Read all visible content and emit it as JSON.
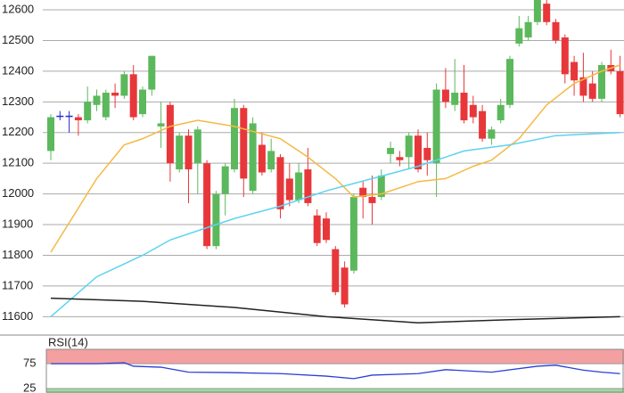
{
  "chart_data": [
    {
      "type": "candlestick",
      "ylim": [
        11540,
        12632
      ],
      "yticks": [
        11600,
        11700,
        11800,
        11900,
        12000,
        12100,
        12200,
        12300,
        12400,
        12500,
        12600
      ],
      "grid": true,
      "up_color": "#5cb85c",
      "down_color": "#e8373a",
      "doji_color": "#2a2ad0",
      "open": [
        12140,
        12255,
        12255,
        12250,
        12240,
        12290,
        12250,
        12330,
        12320,
        12390,
        12260,
        12340,
        12220,
        12290,
        12080,
        12190,
        12100,
        12100,
        11830,
        12000,
        12080,
        12280,
        12010,
        12160,
        12080,
        12120,
        12050,
        11980,
        12080,
        11930,
        11920,
        11820,
        11760,
        11750,
        12020,
        11990,
        11990,
        12130,
        12120,
        12120,
        12190,
        12150,
        12100,
        12340,
        12290,
        12330,
        12290,
        12270,
        12180,
        12240,
        12290,
        12490,
        12510,
        12560,
        12620,
        12560,
        12510,
        12430,
        12380,
        12360,
        12310,
        12420,
        12400
      ],
      "close": [
        12250,
        12255,
        12255,
        12240,
        12300,
        12320,
        12330,
        12320,
        12390,
        12250,
        12340,
        12450,
        12230,
        12100,
        12190,
        12080,
        12210,
        11830,
        12000,
        12090,
        12280,
        12050,
        12230,
        12070,
        12140,
        11950,
        11980,
        12070,
        11970,
        11840,
        11850,
        11680,
        11640,
        11990,
        11990,
        11970,
        12060,
        12150,
        12110,
        12190,
        12080,
        12110,
        12340,
        12300,
        12330,
        12240,
        12250,
        12180,
        12210,
        12290,
        12440,
        12540,
        12560,
        12640,
        12560,
        12500,
        12390,
        12370,
        12320,
        12310,
        12420,
        12400,
        12260
      ],
      "high": [
        12260,
        12270,
        12270,
        12260,
        12350,
        12340,
        12340,
        12360,
        12400,
        12420,
        12350,
        12450,
        12300,
        12300,
        12200,
        12210,
        12220,
        12110,
        12010,
        12100,
        12310,
        12290,
        12250,
        12200,
        12180,
        12130,
        12100,
        12100,
        12150,
        11950,
        11940,
        11830,
        11780,
        12000,
        12040,
        12060,
        12080,
        12170,
        12140,
        12200,
        12210,
        12200,
        12360,
        12410,
        12440,
        12420,
        12320,
        12290,
        12220,
        12310,
        12450,
        12580,
        12580,
        12650,
        12640,
        12570,
        12520,
        12450,
        12460,
        12400,
        12430,
        12470,
        12450
      ],
      "low": [
        12110,
        12240,
        12200,
        12190,
        12230,
        12270,
        12240,
        12280,
        12310,
        12240,
        12250,
        12320,
        12150,
        12040,
        12070,
        11970,
        12000,
        11820,
        11820,
        11930,
        12070,
        11990,
        12000,
        12060,
        12070,
        11920,
        11960,
        11970,
        11960,
        11830,
        11840,
        11670,
        11630,
        11740,
        11920,
        11900,
        11980,
        12100,
        12090,
        12080,
        12070,
        12060,
        11990,
        12280,
        12270,
        12230,
        12230,
        12170,
        12160,
        12230,
        12280,
        12480,
        12500,
        12550,
        12550,
        12490,
        12360,
        12320,
        12300,
        12300,
        12300,
        12390,
        12250
      ],
      "lines": [
        {
          "color": "#f5b942",
          "x": [
            0,
            5,
            8,
            10,
            13,
            16,
            20,
            25,
            28,
            31,
            33,
            36,
            40,
            43,
            46,
            48,
            51,
            54,
            57,
            60,
            62
          ],
          "values": [
            11810,
            12050,
            12160,
            12180,
            12220,
            12240,
            12220,
            12180,
            12120,
            12050,
            11990,
            12000,
            12040,
            12050,
            12090,
            12110,
            12180,
            12290,
            12360,
            12400,
            12420
          ]
        },
        {
          "color": "#5bd3f0",
          "x": [
            0,
            5,
            10,
            13,
            17,
            20,
            25,
            30,
            35,
            40,
            45,
            50,
            55,
            62
          ],
          "values": [
            11600,
            11730,
            11800,
            11850,
            11890,
            11920,
            11960,
            12010,
            12050,
            12090,
            12140,
            12160,
            12190,
            12200
          ]
        },
        {
          "color": "#222222",
          "x": [
            0,
            10,
            20,
            30,
            40,
            50,
            62
          ],
          "values": [
            11660,
            11650,
            11630,
            11600,
            11580,
            11590,
            11600
          ]
        }
      ]
    },
    {
      "type": "line",
      "title": "RSI(14)",
      "ylim": [
        16,
        104
      ],
      "yticks": [
        25,
        75
      ],
      "bands": [
        {
          "from": 75,
          "to": 104,
          "color": "#f08080"
        },
        {
          "from": 16,
          "to": 25,
          "color": "#7ccf7c"
        }
      ],
      "color": "#2a3fd6",
      "x": [
        0,
        5,
        8,
        9,
        12,
        15,
        20,
        25,
        30,
        33,
        35,
        40,
        43,
        48,
        53,
        55,
        58,
        60,
        62
      ],
      "values": [
        75,
        75,
        77,
        70,
        68,
        58,
        57,
        55,
        50,
        45,
        52,
        55,
        63,
        58,
        70,
        72,
        62,
        58,
        55
      ]
    }
  ]
}
